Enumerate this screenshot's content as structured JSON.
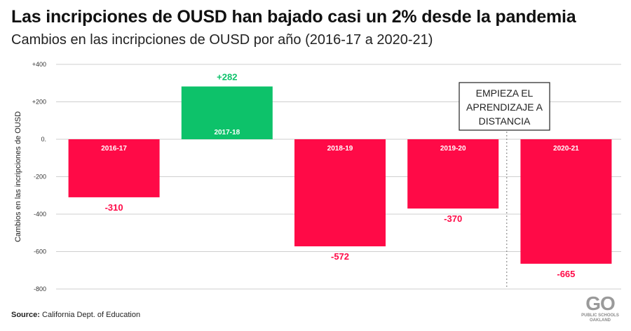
{
  "header": {
    "title": "Las incripciones de OUSD han bajado casi un 2% desde la pandemia",
    "subtitle": "Cambios en las incripciones de OUSD por año (2016-17 a 2020-21)"
  },
  "annotation": {
    "lines": [
      "EMPIEZA EL",
      "APRENDIZAJE A",
      "DISTANCIA"
    ]
  },
  "footer": {
    "source_label": "Source:",
    "source_text": "California Dept. of Education"
  },
  "logo": {
    "mark": "GO",
    "line1": "PUBLIC SCHOOLS",
    "line2": "OAKLAND"
  },
  "colors": {
    "negative": "#ff0a47",
    "positive": "#0dc26a",
    "grid": "#cfcfcf"
  },
  "chart_data": {
    "type": "bar",
    "title": "Las incripciones de OUSD han bajado casi un 2% desde la pandemia",
    "subtitle": "Cambios en las incripciones de OUSD por año (2016-17 a 2020-21)",
    "xlabel": "",
    "ylabel": "Cambios en las incripciones de OUSD",
    "categories": [
      "2016-17",
      "2017-18",
      "2018-19",
      "2019-20",
      "2020-21"
    ],
    "values": [
      -310,
      282,
      -572,
      -370,
      -665
    ],
    "value_labels": [
      "-310",
      "+282",
      "-572",
      "-370",
      "-665"
    ],
    "ylim": [
      -800,
      400
    ],
    "yticks": [
      400,
      200,
      0,
      -200,
      -400,
      -600,
      -800
    ],
    "ytick_labels": [
      "+400",
      "+200",
      "0.",
      "-200",
      "-400",
      "-600",
      "-800"
    ],
    "grid": true,
    "legend": "none"
  }
}
